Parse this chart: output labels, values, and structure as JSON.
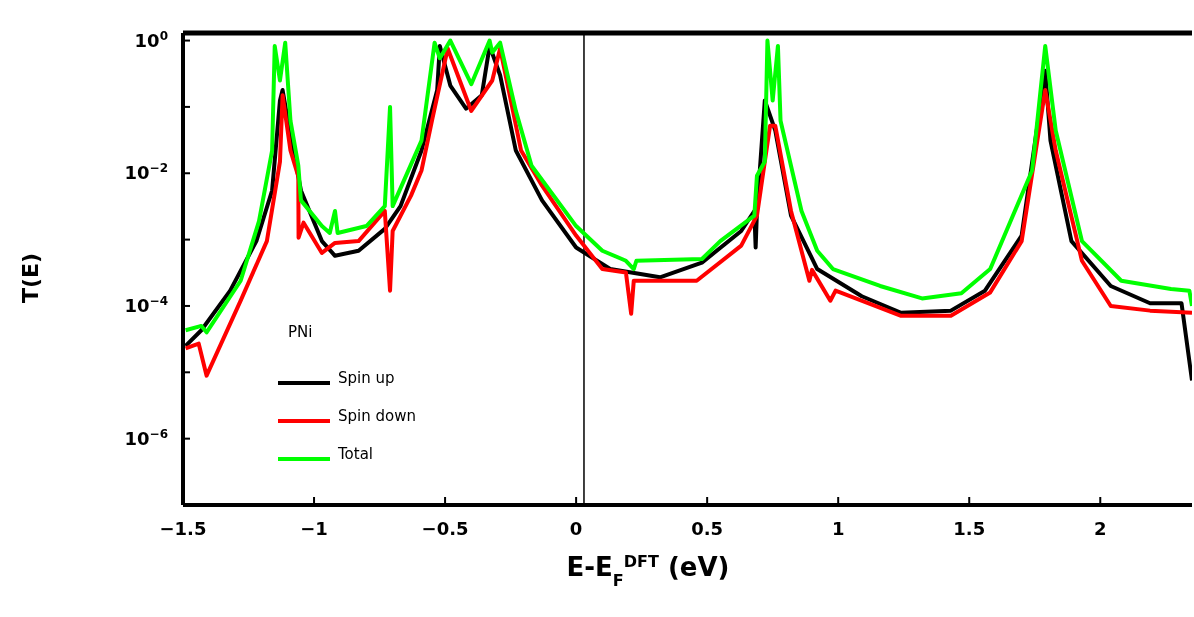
{
  "chart_data": {
    "type": "line",
    "xlabel": "E-E$_{F}$$^{DFT}$ (eV)",
    "ylabel": "T(E)",
    "legend_title": "PNi",
    "legend": "left",
    "log": "y",
    "grid": false,
    "marker": "none",
    "line_style": "solid",
    "xlim": [
      -1.5,
      2.35
    ],
    "xticks": [
      {
        "value": -1.5,
        "label": "−1.5"
      },
      {
        "value": -1,
        "label": "−1"
      },
      {
        "value": -0.5,
        "label": "−0.5"
      },
      0,
      0.5,
      1,
      1.5,
      2
    ],
    "ylim": [
      1e-07,
      1.3
    ],
    "yticks": [
      {
        "value": 1e-07,
        "label": null
      },
      {
        "value": 1e-06,
        "label": "10$^{−6}$"
      },
      {
        "value": 1e-05,
        "label": null
      },
      {
        "value": 0.0001,
        "label": "10$^{−4}$"
      },
      {
        "value": 0.001,
        "label": null
      },
      {
        "value": 0.01,
        "label": "10$^{−2}$"
      },
      {
        "value": 0.1,
        "label": null
      },
      {
        "value": 1,
        "label": "10$^{0}$"
      }
    ],
    "ref_lines": [
      {
        "axis": "x",
        "value": 0.03,
        "color": "#000000"
      }
    ],
    "series": [
      {
        "name": "Spin up",
        "color": "#000000",
        "x": [
          -1.49,
          -1.43,
          -1.32,
          -1.22,
          -1.16,
          -1.13,
          -1.12,
          -1.1,
          -1.05,
          -0.97,
          -0.92,
          -0.83,
          -0.73,
          -0.67,
          -0.59,
          -0.53,
          -0.52,
          -0.48,
          -0.42,
          -0.36,
          -0.33,
          -0.29,
          -0.23,
          -0.13,
          0,
          0.13,
          0.32,
          0.48,
          0.63,
          0.68,
          0.685,
          0.69,
          0.72,
          0.76,
          0.82,
          0.92,
          1.09,
          1.24,
          1.43,
          1.56,
          1.7,
          1.79,
          1.81,
          1.89,
          2.04,
          2.19,
          2.31,
          2.35
        ],
        "values": [
          2.5e-05,
          4.3e-05,
          0.00017,
          0.00095,
          0.0055,
          0.125,
          0.18,
          0.063,
          0.0055,
          0.00095,
          0.00057,
          0.00068,
          0.00145,
          0.0032,
          0.022,
          0.18,
          0.83,
          0.21,
          0.094,
          0.15,
          0.83,
          0.3,
          0.022,
          0.0039,
          0.00076,
          0.00036,
          0.00027,
          0.00045,
          0.00135,
          0.0027,
          0.00076,
          0.0027,
          0.125,
          0.044,
          0.0023,
          0.00036,
          0.00014,
          7.9e-05,
          8.5e-05,
          0.00017,
          0.00115,
          0.35,
          0.031,
          0.00095,
          0.0002,
          0.00011,
          0.00011,
          7.5e-06
        ]
      },
      {
        "name": "Spin down",
        "color": "#ff0000",
        "x": [
          -1.49,
          -1.44,
          -1.41,
          -1.28,
          -1.18,
          -1.13,
          -1.12,
          -1.09,
          -1.06,
          -1.059,
          -1.04,
          -0.97,
          -0.92,
          -0.83,
          -0.73,
          -0.71,
          -0.7,
          -0.63,
          -0.59,
          -0.55,
          -0.49,
          -0.4,
          -0.32,
          -0.29,
          -0.21,
          -0.13,
          0,
          0.1,
          0.19,
          0.21,
          0.22,
          0.46,
          0.63,
          0.69,
          0.74,
          0.76,
          0.82,
          0.89,
          0.9,
          0.97,
          0.99,
          1.24,
          1.43,
          1.58,
          1.7,
          1.79,
          1.83,
          1.93,
          2.04,
          2.19,
          2.35
        ],
        "values": [
          2.3e-05,
          2.7e-05,
          8.9e-06,
          0.00012,
          0.00095,
          0.015,
          0.15,
          0.022,
          0.009,
          0.00107,
          0.0018,
          0.00063,
          0.00089,
          0.00095,
          0.0027,
          0.00017,
          0.00135,
          0.0046,
          0.011,
          0.062,
          0.76,
          0.087,
          0.25,
          0.76,
          0.022,
          0.0065,
          0.00115,
          0.00036,
          0.00032,
          7.6e-05,
          0.00024,
          0.00024,
          0.00081,
          0.0023,
          0.052,
          0.052,
          0.0027,
          0.00024,
          0.00035,
          0.00012,
          0.00017,
          7.1e-05,
          7.1e-05,
          0.00016,
          0.00095,
          0.18,
          0.022,
          0.00048,
          0.0001,
          8.5e-05,
          7.9e-05
        ]
      },
      {
        "name": "Total",
        "color": "#00ff00",
        "x": [
          -1.49,
          -1.43,
          -1.41,
          -1.28,
          -1.21,
          -1.16,
          -1.15,
          -1.13,
          -1.11,
          -1.09,
          -1.06,
          -1.05,
          -0.97,
          -0.94,
          -0.92,
          -0.91,
          -0.8,
          -0.73,
          -0.71,
          -0.7,
          -0.59,
          -0.54,
          -0.52,
          -0.48,
          -0.4,
          -0.33,
          -0.32,
          -0.29,
          -0.23,
          -0.17,
          0,
          0.1,
          0.19,
          0.22,
          0.23,
          0.48,
          0.55,
          0.68,
          0.69,
          0.72,
          0.73,
          0.75,
          0.77,
          0.78,
          0.86,
          0.92,
          0.98,
          1.16,
          1.32,
          1.47,
          1.58,
          1.74,
          1.79,
          1.83,
          1.93,
          2.08,
          2.27,
          2.34,
          2.35
        ],
        "values": [
          4.3e-05,
          5e-05,
          4e-05,
          0.00024,
          0.0019,
          0.022,
          0.83,
          0.25,
          0.93,
          0.062,
          0.013,
          0.0039,
          0.0016,
          0.00126,
          0.0027,
          0.00126,
          0.0016,
          0.0032,
          0.1,
          0.0032,
          0.031,
          0.93,
          0.54,
          1.0,
          0.22,
          1.0,
          0.66,
          0.93,
          0.087,
          0.013,
          0.0016,
          0.00068,
          0.00048,
          0.00036,
          0.00048,
          0.00051,
          0.00095,
          0.0023,
          0.0092,
          0.015,
          1.0,
          0.125,
          0.83,
          0.062,
          0.0027,
          0.00068,
          0.00036,
          0.0002,
          0.00013,
          0.000155,
          0.00036,
          0.011,
          0.83,
          0.044,
          0.00095,
          0.00024,
          0.00018,
          0.00017,
          0.0001
        ]
      }
    ]
  }
}
